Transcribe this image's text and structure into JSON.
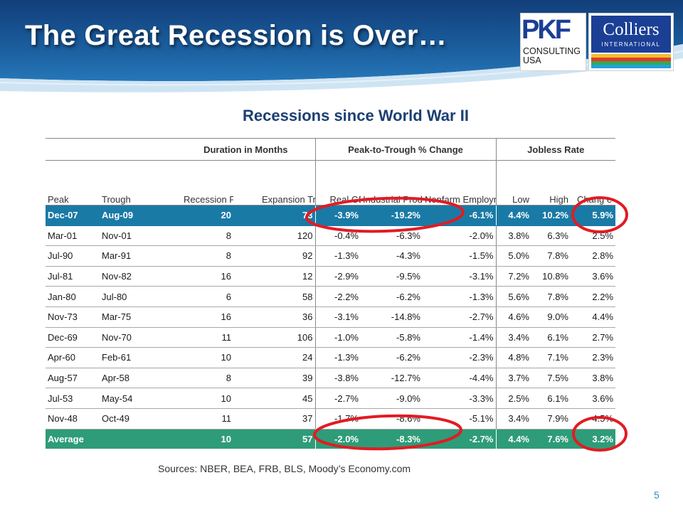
{
  "title": "The Great Recession is Over…",
  "logos": {
    "pkf": {
      "letters": "PKF",
      "line1": "CONSULTING",
      "line2": "USA"
    },
    "colliers": {
      "name": "Colliers",
      "sub": "INTERNATIONAL",
      "stripe_colors": [
        "#f2c02e",
        "#e23a2e",
        "#3ca650",
        "#1fa3dc"
      ]
    }
  },
  "subtitle": "Recessions since World War II",
  "table": {
    "group_headers": [
      "Duration in Months",
      "Peak-to-Trough % Change",
      "Jobless Rate"
    ],
    "column_headers": [
      "Peak",
      "Trough",
      "Recession Peak to Trough",
      "Expansion Trough to Peak",
      "Real GDP",
      "Industrial Production",
      "Nonfarm Employment",
      "Low",
      "High",
      "Chang e"
    ],
    "rows": [
      [
        "Dec-07",
        "Aug-09",
        "20",
        "73",
        "-3.9%",
        "-19.2%",
        "-6.1%",
        "4.4%",
        "10.2%",
        "5.9%"
      ],
      [
        "Mar-01",
        "Nov-01",
        "8",
        "120",
        "-0.4%",
        "-6.3%",
        "-2.0%",
        "3.8%",
        "6.3%",
        "2.5%"
      ],
      [
        "Jul-90",
        "Mar-91",
        "8",
        "92",
        "-1.3%",
        "-4.3%",
        "-1.5%",
        "5.0%",
        "7.8%",
        "2.8%"
      ],
      [
        "Jul-81",
        "Nov-82",
        "16",
        "12",
        "-2.9%",
        "-9.5%",
        "-3.1%",
        "7.2%",
        "10.8%",
        "3.6%"
      ],
      [
        "Jan-80",
        "Jul-80",
        "6",
        "58",
        "-2.2%",
        "-6.2%",
        "-1.3%",
        "5.6%",
        "7.8%",
        "2.2%"
      ],
      [
        "Nov-73",
        "Mar-75",
        "16",
        "36",
        "-3.1%",
        "-14.8%",
        "-2.7%",
        "4.6%",
        "9.0%",
        "4.4%"
      ],
      [
        "Dec-69",
        "Nov-70",
        "11",
        "106",
        "-1.0%",
        "-5.8%",
        "-1.4%",
        "3.4%",
        "6.1%",
        "2.7%"
      ],
      [
        "Apr-60",
        "Feb-61",
        "10",
        "24",
        "-1.3%",
        "-6.2%",
        "-2.3%",
        "4.8%",
        "7.1%",
        "2.3%"
      ],
      [
        "Aug-57",
        "Apr-58",
        "8",
        "39",
        "-3.8%",
        "-12.7%",
        "-4.4%",
        "3.7%",
        "7.5%",
        "3.8%"
      ],
      [
        "Jul-53",
        "May-54",
        "10",
        "45",
        "-2.7%",
        "-9.0%",
        "-3.3%",
        "2.5%",
        "6.1%",
        "3.6%"
      ],
      [
        "Nov-48",
        "Oct-49",
        "11",
        "37",
        "-1.7%",
        "-8.6%",
        "-5.1%",
        "3.4%",
        "7.9%",
        "4.5%"
      ]
    ],
    "average": [
      "Average",
      "",
      "10",
      "57",
      "-2.0%",
      "-8.3%",
      "-2.7%",
      "4.4%",
      "7.6%",
      "3.2%"
    ]
  },
  "colors": {
    "header_blue": "#1b5e9e",
    "highlight_row": "#1a7aa6",
    "average_row": "#2e9c78",
    "circle": "#e21b23"
  },
  "sources": "Sources: NBER, BEA, FRB, BLS, Moody’s Economy.com",
  "page_number": "5"
}
